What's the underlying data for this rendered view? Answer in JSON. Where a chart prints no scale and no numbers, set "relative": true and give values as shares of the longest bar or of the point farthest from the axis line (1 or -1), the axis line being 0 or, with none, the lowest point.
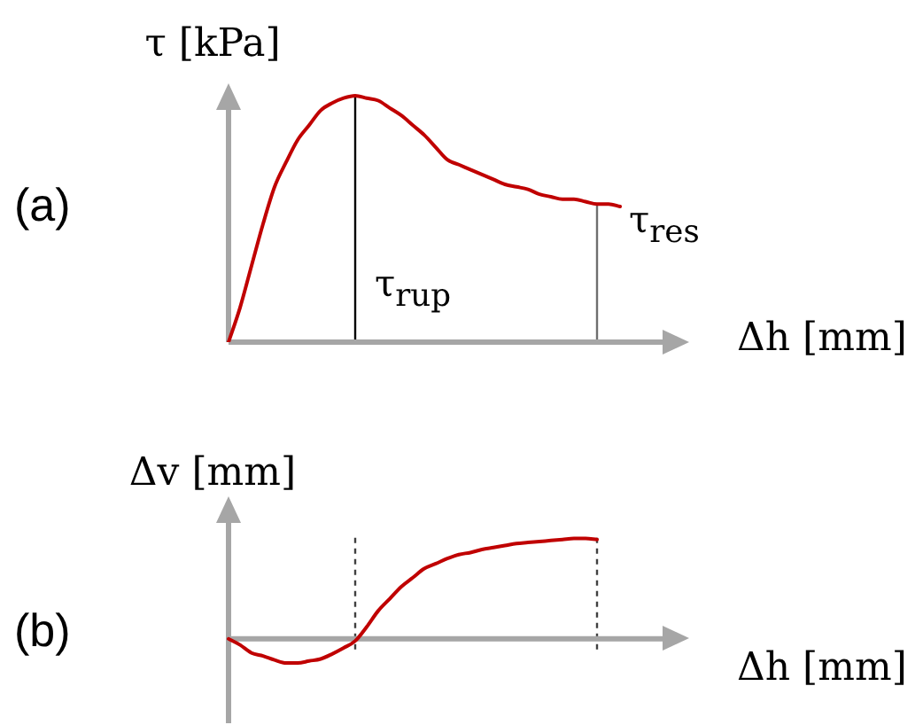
{
  "chart_data": [
    {
      "type": "line",
      "title": "(a)",
      "xlabel": "Δh [mm]",
      "ylabel": "τ [kPa]",
      "categories": [
        null,
        null,
        null,
        null,
        null,
        null,
        null,
        null,
        null,
        null,
        null,
        null,
        null,
        null,
        null,
        null,
        null,
        null,
        null,
        null,
        null,
        null,
        null,
        null,
        null,
        null,
        null,
        null,
        null,
        null,
        null,
        null,
        null,
        null,
        null,
        null,
        null,
        null,
        null,
        null,
        null
      ],
      "values": [
        0,
        0.14,
        0.31,
        0.48,
        0.63,
        0.73,
        0.82,
        0.88,
        0.94,
        0.97,
        0.99,
        1,
        0.99,
        0.98,
        0.95,
        0.92,
        0.88,
        0.84,
        0.79,
        0.74,
        0.72,
        0.7,
        0.68,
        0.66,
        0.64,
        0.63,
        0.62,
        0.6,
        0.59,
        0.58,
        0.58,
        0.57,
        0.56,
        0.56,
        0.55,
        null,
        null,
        null,
        null,
        null,
        null
      ],
      "color": "#c00000",
      "relative": true,
      "annotations": [
        "τ$_{rup}$",
        "τ$_{res}$"
      ],
      "marker": "none",
      "legend": false,
      "grid": false
    },
    {
      "type": "line",
      "title": "(b)",
      "xlabel": "Δh [mm]",
      "ylabel": "Δv [mm]",
      "categories": [
        null,
        null,
        null,
        null,
        null,
        null,
        null,
        null,
        null,
        null,
        null,
        null,
        null,
        null,
        null,
        null,
        null,
        null,
        null,
        null,
        null,
        null,
        null,
        null,
        null,
        null,
        null,
        null,
        null,
        null,
        null,
        null,
        null,
        null,
        null,
        null,
        null,
        null,
        null,
        null,
        null
      ],
      "values": [
        0,
        -0.06,
        -0.14,
        -0.17,
        -0.21,
        -0.24,
        -0.24,
        -0.22,
        -0.2,
        -0.15,
        -0.09,
        -0.02,
        0.12,
        0.28,
        0.4,
        0.52,
        0.61,
        0.7,
        0.75,
        0.8,
        0.84,
        0.86,
        0.89,
        0.91,
        0.93,
        0.95,
        0.96,
        0.97,
        0.98,
        0.99,
        1,
        1,
        0.99,
        null,
        null,
        null,
        null,
        null,
        null,
        null,
        null
      ],
      "color": "#c00000",
      "relative": true,
      "marker": "none",
      "legend": false,
      "grid": false
    }
  ]
}
